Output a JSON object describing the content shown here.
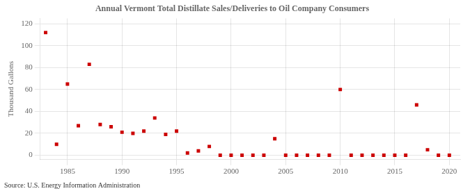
{
  "chart_data": {
    "type": "scatter",
    "title": "Annual Vermont Total Distillate Sales/Deliveries to Oil Company Consumers",
    "ylabel": "Thousand Gallons",
    "source": "Source: U.S. Energy Information Administration",
    "x": [
      1983,
      1984,
      1985,
      1986,
      1987,
      1988,
      1989,
      1990,
      1991,
      1992,
      1993,
      1994,
      1995,
      1996,
      1997,
      1998,
      1999,
      2000,
      2001,
      2002,
      2003,
      2004,
      2005,
      2006,
      2007,
      2008,
      2009,
      2010,
      2011,
      2012,
      2013,
      2014,
      2015,
      2016,
      2017,
      2018,
      2019,
      2020
    ],
    "values": [
      112,
      10,
      65,
      27,
      83,
      28,
      26,
      21,
      20,
      22,
      34,
      19,
      22,
      2,
      4,
      8,
      0,
      0,
      0,
      0,
      0,
      15,
      0,
      0,
      0,
      0,
      0,
      60,
      0,
      0,
      0,
      0,
      0,
      0,
      46,
      5,
      0,
      0
    ],
    "color": "#cc0000",
    "marker": "square",
    "xlim": [
      1982.5,
      2021
    ],
    "ylim": [
      -4,
      125
    ],
    "xticks": [
      1985,
      1990,
      1995,
      2000,
      2005,
      2010,
      2015,
      2020
    ],
    "yticks": [
      0,
      20,
      40,
      60,
      80,
      100,
      120
    ],
    "grid": true
  }
}
